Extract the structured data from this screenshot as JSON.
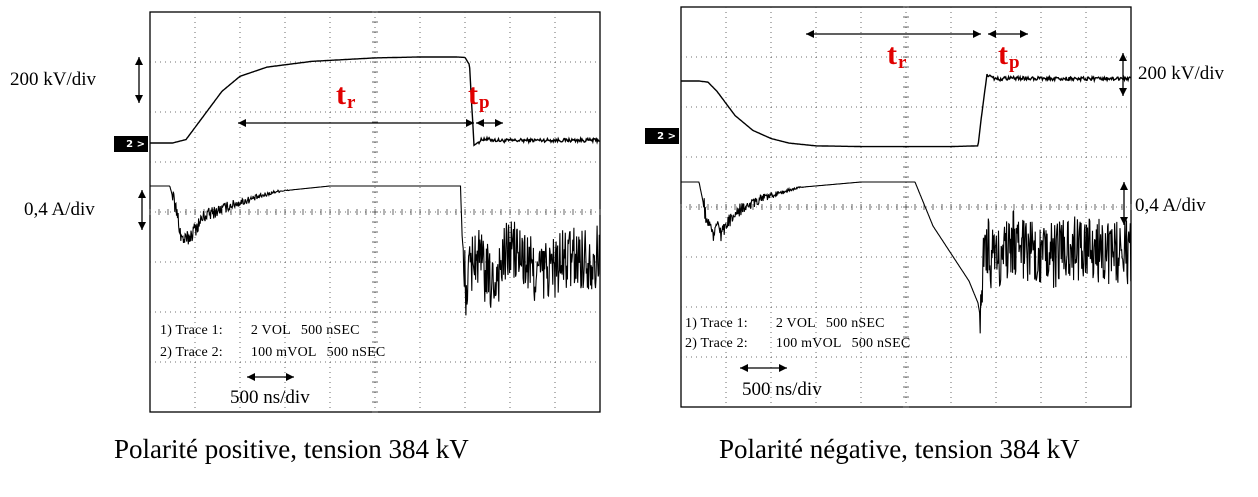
{
  "colors": {
    "trace": "#000000",
    "annotation": "#e00000",
    "grid_dot": "#444444",
    "background": "#ffffff"
  },
  "icons": {
    "trace_marker": "trace-2-marker-icon",
    "arrows": "double-headed-arrow-icon"
  },
  "chart_data": [
    {
      "type": "line",
      "caption": "Polarité positive, tension 384 kV",
      "voltage_scale": "200 kV/div",
      "current_scale": "0,4 A/div",
      "time_scale": "500 ns/div",
      "rise_label": "t",
      "rise_sub": "r",
      "peak_label": "t",
      "peak_sub": "p",
      "marker": "2 >",
      "trace1": {
        "prefix": "1) Trace 1:",
        "volts": "2 VOL",
        "time": "500 nSEC"
      },
      "trace2": {
        "prefix": "2) Trace 2:",
        "volts": "100 mVOL",
        "time": "500 nSEC"
      },
      "x_unit": "ns",
      "xlim": [
        0,
        5000
      ],
      "voltage_series": {
        "name": "",
        "unit": "kV",
        "t_ns": [
          0,
          150,
          250,
          400,
          600,
          800,
          1000,
          1300,
          1800,
          2500,
          3000,
          3400,
          3500,
          3550,
          3600,
          3700,
          3900,
          4300,
          5000
        ],
        "values": [
          0,
          0,
          0,
          15,
          120,
          225,
          290,
          330,
          355,
          370,
          374,
          374,
          372,
          340,
          -10,
          18,
          10,
          12,
          12
        ]
      },
      "current_series": {
        "name": "",
        "unit": "A",
        "t_ns": [
          0,
          120,
          220,
          300,
          350,
          400,
          450,
          600,
          900,
          1400,
          2000,
          2800,
          3300,
          3450,
          3480,
          3520,
          3600,
          3800,
          4000,
          4300,
          4700,
          5000
        ],
        "values": [
          0,
          0,
          0,
          -0.5,
          -0.95,
          -1.0,
          -0.9,
          -0.55,
          -0.35,
          -0.1,
          0,
          0,
          0,
          0,
          -1.5,
          -1.9,
          -1.2,
          -1.8,
          -1.1,
          -1.6,
          -1.3,
          -1.3
        ]
      }
    },
    {
      "type": "line",
      "caption": "Polarité négative, tension 384 kV",
      "voltage_scale": "200 kV/div",
      "current_scale": "0,4 A/div",
      "time_scale": "500 ns/div",
      "rise_label": "t",
      "rise_sub": "r",
      "peak_label": "t",
      "peak_sub": "p",
      "marker": "2 >",
      "trace1": {
        "prefix": "1) Trace 1:",
        "volts": "2 VOL",
        "time": "500 nSEC"
      },
      "trace2": {
        "prefix": "2) Trace 2:",
        "volts": "100 mVOL",
        "time": "500 nSEC"
      },
      "x_unit": "ns",
      "xlim": [
        0,
        5000
      ],
      "voltage_series": {
        "name": "",
        "unit": "kV",
        "t_ns": [
          0,
          200,
          300,
          400,
          600,
          800,
          1000,
          1200,
          1500,
          2000,
          3000,
          3300,
          3340,
          3400,
          3500,
          3700,
          4200,
          5000
        ],
        "values": [
          0,
          0,
          -5,
          -45,
          -150,
          -215,
          -250,
          -270,
          -282,
          -285,
          -285,
          -282,
          -150,
          30,
          8,
          12,
          10,
          10
        ]
      },
      "current_series": {
        "name": "",
        "unit": "A",
        "t_ns": [
          0,
          200,
          250,
          300,
          350,
          400,
          450,
          600,
          900,
          1300,
          2000,
          2600,
          2800,
          3000,
          3200,
          3300,
          3320,
          3360,
          3400,
          3500,
          3700,
          4000,
          4400,
          5000
        ],
        "values": [
          0,
          0,
          -0.4,
          -0.8,
          -1.0,
          -0.85,
          -0.95,
          -0.55,
          -0.3,
          -0.1,
          0,
          0,
          -0.8,
          -1.3,
          -1.8,
          -2.2,
          -2.4,
          -1.6,
          -1.2,
          -1.5,
          -1.1,
          -1.4,
          -1.2,
          -1.3
        ]
      }
    }
  ]
}
